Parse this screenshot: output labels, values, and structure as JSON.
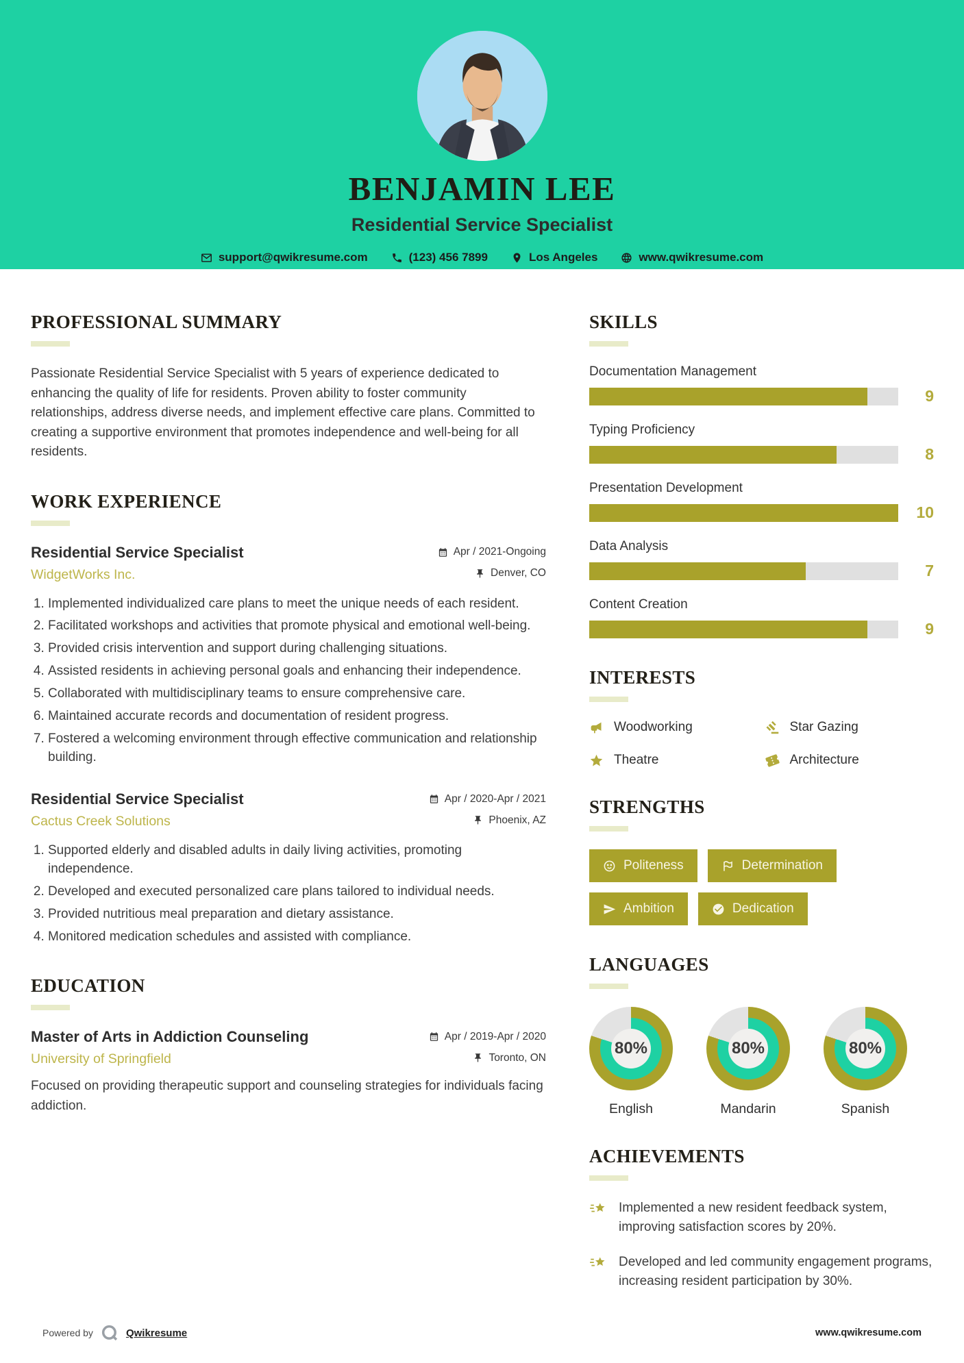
{
  "colors": {
    "teal": "#1ed1a3",
    "olive": "#a9a22b",
    "olive_light": "#b3ab3c",
    "photo_bg": "#abdcf3",
    "heading_underline": "#e8ebc9"
  },
  "header": {
    "name": "BENJAMIN LEE",
    "title": "Residential Service Specialist",
    "contact": {
      "email": "support@qwikresume.com",
      "phone": "(123) 456 7899",
      "location": "Los Angeles",
      "website": "www.qwikresume.com"
    }
  },
  "summary": {
    "heading": "PROFESSIONAL SUMMARY",
    "text": "Passionate Residential Service Specialist with 5 years of experience dedicated to enhancing the quality of life for residents. Proven ability to foster community relationships, address diverse needs, and implement effective care plans. Committed to creating a supportive environment that promotes independence and well-being for all residents."
  },
  "experience": {
    "heading": "WORK EXPERIENCE",
    "jobs": [
      {
        "title": "Residential Service Specialist",
        "company": "WidgetWorks Inc.",
        "dates": "Apr / 2021-Ongoing",
        "location": "Denver, CO",
        "bullets": [
          "Implemented individualized care plans to meet the unique needs of each resident.",
          "Facilitated workshops and activities that promote physical and emotional well-being.",
          "Provided crisis intervention and support during challenging situations.",
          "Assisted residents in achieving personal goals and enhancing their independence.",
          "Collaborated with multidisciplinary teams to ensure comprehensive care.",
          "Maintained accurate records and documentation of resident progress.",
          "Fostered a welcoming environment through effective communication and relationship building."
        ]
      },
      {
        "title": "Residential Service Specialist",
        "company": "Cactus Creek Solutions",
        "dates": "Apr / 2020-Apr / 2021",
        "location": "Phoenix, AZ",
        "bullets": [
          "Supported elderly and disabled adults in daily living activities, promoting independence.",
          "Developed and executed personalized care plans tailored to individual needs.",
          "Provided nutritious meal preparation and dietary assistance.",
          "Monitored medication schedules and assisted with compliance."
        ]
      }
    ]
  },
  "education": {
    "heading": "EDUCATION",
    "degree": "Master of Arts in Addiction Counseling",
    "school": "University of Springfield",
    "dates": "Apr / 2019-Apr / 2020",
    "location": "Toronto, ON",
    "description": "Focused on providing therapeutic support and counseling strategies for individuals facing addiction."
  },
  "skills": {
    "heading": "SKILLS",
    "max_score": 10,
    "items": [
      {
        "name": "Documentation Management",
        "score": 9
      },
      {
        "name": "Typing Proficiency",
        "score": 8
      },
      {
        "name": "Presentation Development",
        "score": 10
      },
      {
        "name": "Data Analysis",
        "score": 7
      },
      {
        "name": "Content Creation",
        "score": 9
      }
    ]
  },
  "interests": {
    "heading": "INTERESTS",
    "items": [
      {
        "label": "Woodworking",
        "icon": "megaphone-icon"
      },
      {
        "label": "Star Gazing",
        "icon": "gavel-icon"
      },
      {
        "label": "Theatre",
        "icon": "star-icon"
      },
      {
        "label": "Architecture",
        "icon": "ticket-icon"
      }
    ]
  },
  "strengths": {
    "heading": "STRENGTHS",
    "items": [
      {
        "label": "Politeness",
        "icon": "smiley-icon"
      },
      {
        "label": "Determination",
        "icon": "flag-icon"
      },
      {
        "label": "Ambition",
        "icon": "paper-plane-icon"
      },
      {
        "label": "Dedication",
        "icon": "check-circle-icon"
      }
    ]
  },
  "languages": {
    "heading": "LANGUAGES",
    "items": [
      {
        "label": "English",
        "percent": 80,
        "percent_label": "80%"
      },
      {
        "label": "Mandarin",
        "percent": 80,
        "percent_label": "80%"
      },
      {
        "label": "Spanish",
        "percent": 80,
        "percent_label": "80%"
      }
    ]
  },
  "achievements": {
    "heading": "ACHIEVEMENTS",
    "items": [
      "Implemented a new resident feedback system, improving satisfaction scores by 20%.",
      "Developed and led community engagement programs, increasing resident participation by 30%."
    ]
  },
  "footer": {
    "powered_by": "Powered by",
    "brand": "Qwikresume",
    "site": "www.qwikresume.com"
  }
}
